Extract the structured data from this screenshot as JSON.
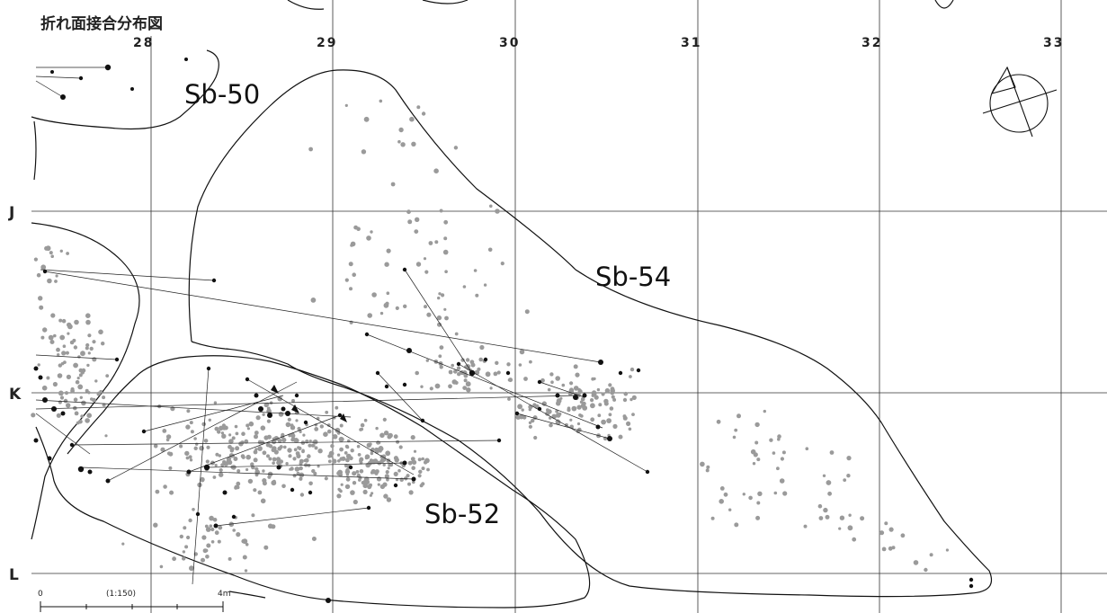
{
  "title": "折れ面接合分布図",
  "grid": {
    "columns": [
      "28",
      "29",
      "30",
      "31",
      "32",
      "33"
    ],
    "rows": [
      "J",
      "K",
      "L"
    ]
  },
  "areas": [
    {
      "id": "sb50",
      "label": "Sb-50"
    },
    {
      "id": "sb54",
      "label": "Sb-54"
    },
    {
      "id": "sb52",
      "label": "Sb-52"
    }
  ],
  "scale_bar": {
    "start": "0",
    "ratio": "(1:150)",
    "end": "4m"
  },
  "colors": {
    "line": "#111111",
    "artifact_joined": "#111111",
    "artifact_other": "#9a9a9a"
  },
  "icons": {
    "north_arrow": "north-arrow-icon"
  }
}
